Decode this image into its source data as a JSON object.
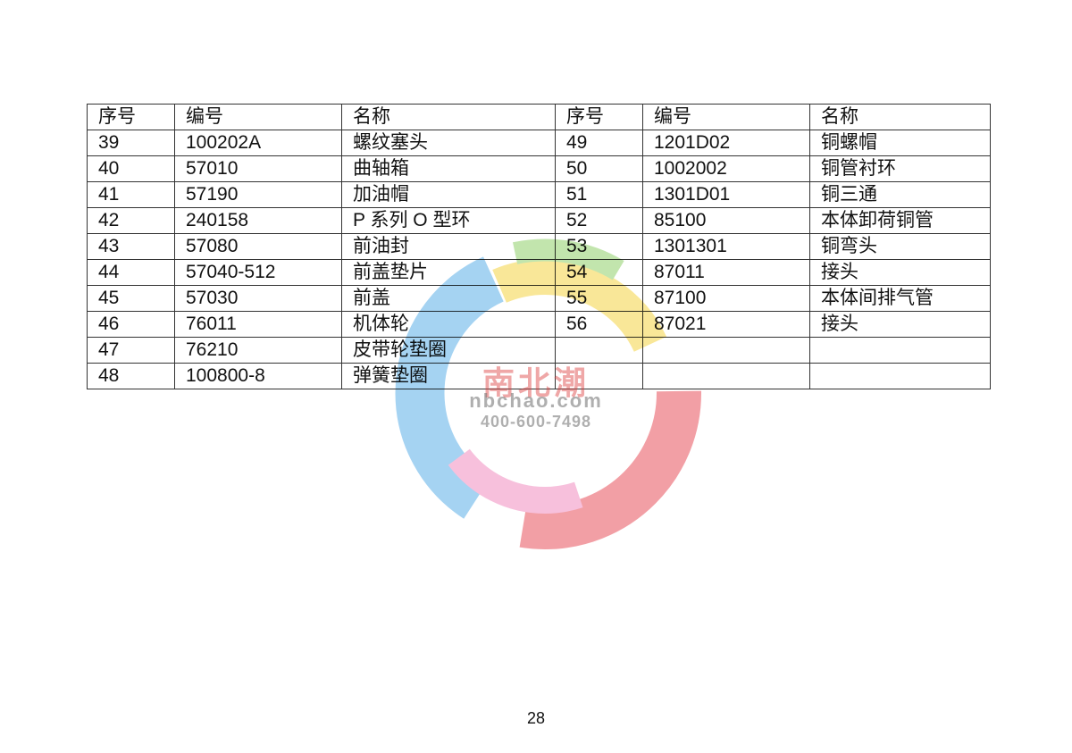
{
  "table": {
    "headers": [
      "序号",
      "编号",
      "名称",
      "序号",
      "编号",
      "名称"
    ],
    "rows": [
      [
        "39",
        "100202A",
        "螺纹塞头",
        "49",
        "1201D02",
        "铜螺帽"
      ],
      [
        "40",
        "57010",
        "曲轴箱",
        "50",
        "1002002",
        "铜管衬环"
      ],
      [
        "41",
        "57190",
        "加油帽",
        "51",
        "1301D01",
        "铜三通"
      ],
      [
        "42",
        "240158",
        "P 系列 O 型环",
        "52",
        "85100",
        "本体卸荷铜管"
      ],
      [
        "43",
        "57080",
        "前油封",
        "53",
        "1301301",
        "铜弯头"
      ],
      [
        "44",
        "57040-512",
        "前盖垫片",
        "54",
        "87011",
        "接头"
      ],
      [
        "45",
        "57030",
        "前盖",
        "55",
        "87100",
        "本体间排气管"
      ],
      [
        "46",
        "76011",
        "机体轮",
        "56",
        "87021",
        "接头"
      ],
      [
        "47",
        "76210",
        "皮带轮垫圈",
        "",
        "",
        ""
      ],
      [
        "48",
        "100800-8",
        "弹簧垫圈",
        "",
        "",
        ""
      ]
    ]
  },
  "watermark": {
    "name_cn": "南北潮",
    "url": "nbchao.com",
    "phone": "400-600-7498",
    "colors": [
      "#e8505a",
      "#f5d442",
      "#5aaee8",
      "#8fd06a",
      "#f08cc0"
    ]
  },
  "page_number": "28"
}
